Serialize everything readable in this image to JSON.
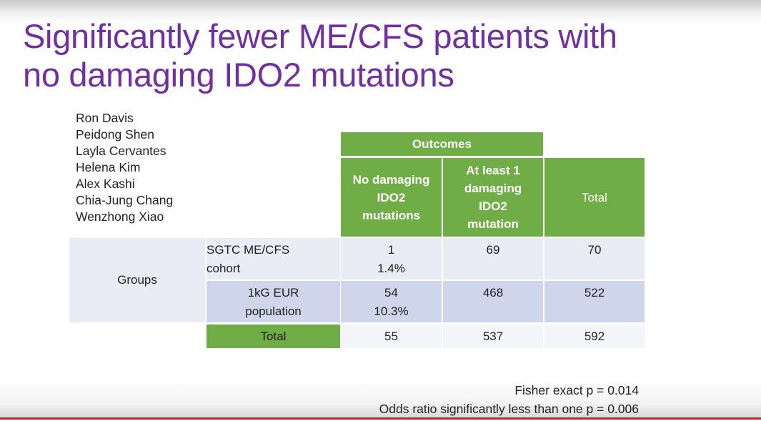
{
  "slide": {
    "title_line1": "Significantly fewer ME/CFS patients with",
    "title_line2": "no damaging IDO2 mutations",
    "authors": [
      "Ron Davis",
      "Peidong Shen",
      "Layla Cervantes",
      "Helena Kim",
      "Alex Kashi",
      "Chia-Jung Chang",
      "Wenzhong Xiao"
    ],
    "colors": {
      "title": "#7030a0",
      "header_green": "#70ad47",
      "row_blue": "#cfd5ea",
      "accent_line": "#c0282d"
    }
  },
  "table": {
    "outcomes_label": "Outcomes",
    "col_no_damaging": [
      "No damaging",
      "IDO2",
      "mutations"
    ],
    "col_at_least": [
      "At least 1",
      "damaging",
      "IDO2",
      "mutation"
    ],
    "col_total": "Total",
    "groups_label": "Groups",
    "row1": {
      "label": [
        "SGTC ME/CFS",
        "cohort"
      ],
      "no_damaging": "1",
      "no_damaging_pct": "1.4%",
      "at_least": "69",
      "total": "70"
    },
    "row2": {
      "label": [
        "1kG EUR",
        "population"
      ],
      "no_damaging": "54",
      "no_damaging_pct": "10.3%",
      "at_least": "468",
      "total": "522"
    },
    "total_row": {
      "label": "Total",
      "no_damaging": "55",
      "at_least": "537",
      "total": "592"
    }
  },
  "stats": {
    "fisher": "Fisher exact p = 0.014",
    "odds_ratio": "Odds ratio significantly less than one p = 0.006"
  }
}
